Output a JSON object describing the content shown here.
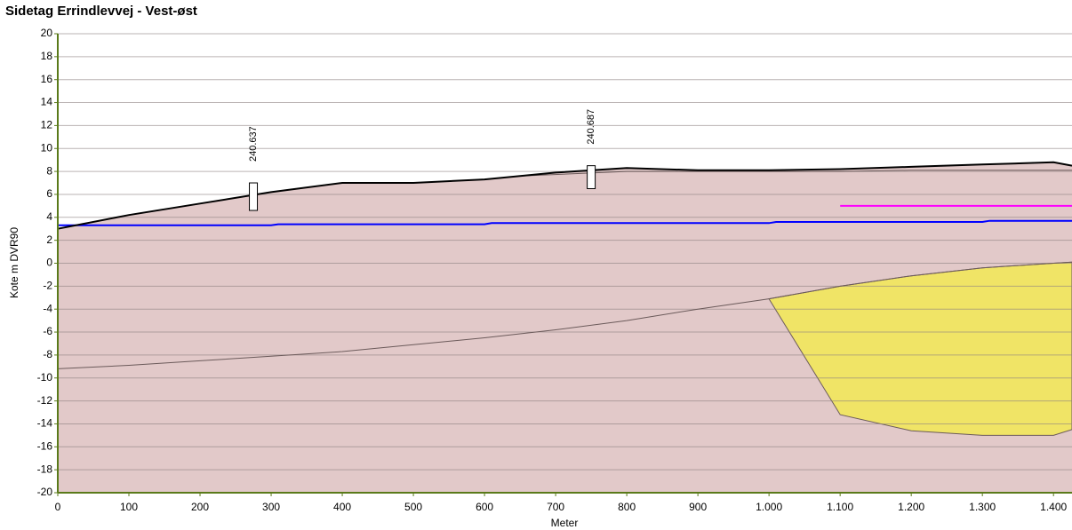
{
  "chart_data": {
    "type": "area",
    "title": "Sidetag Errindlevvej - Vest-øst",
    "xlabel": "Meter",
    "ylabel": "Kote m DVR90",
    "xlim": [
      0,
      1426
    ],
    "ylim": [
      -20,
      20
    ],
    "xticks": [
      0,
      100,
      200,
      300,
      400,
      500,
      600,
      700,
      800,
      900,
      {
        "value": 1000,
        "label": "1.000"
      },
      {
        "value": 1100,
        "label": "1.100"
      },
      {
        "value": 1200,
        "label": "1.200"
      },
      {
        "value": 1300,
        "label": "1.300"
      },
      {
        "value": 1400,
        "label": "1.400"
      }
    ],
    "yticks": [
      -20,
      -18,
      -16,
      -14,
      -12,
      -10,
      -8,
      -6,
      -4,
      -2,
      0,
      2,
      4,
      6,
      8,
      10,
      12,
      14,
      16,
      18,
      20
    ],
    "grid": true,
    "series": [
      {
        "style": "area",
        "color": "#000000",
        "fill": "#e2c9c9",
        "x": [
          0,
          100,
          200,
          300,
          400,
          500,
          600,
          700,
          800,
          900,
          1000,
          1100,
          1200,
          1300,
          1400,
          1426
        ],
        "values": [
          3,
          4.2,
          5.2,
          6.2,
          7,
          7,
          7.3,
          7.9,
          8.3,
          8.1,
          8.1,
          8.2,
          8.4,
          8.6,
          8.8,
          8.5
        ]
      },
      {
        "style": "polygon",
        "color": "#6b5a5a",
        "fill": "#f0e466",
        "x": [
          1000,
          1100,
          1200,
          1300,
          1400,
          1426,
          1426,
          1400,
          1300,
          1200,
          1100
        ],
        "values": [
          -3.1,
          -2.0,
          -1.1,
          -0.4,
          0,
          0.1,
          -14.5,
          -15,
          -15,
          -14.6,
          -13.2
        ]
      },
      {
        "style": "line",
        "color": "#6b5a5a",
        "x": [
          0,
          100,
          200,
          300,
          400,
          500,
          600,
          700,
          800,
          900,
          1000,
          1100,
          1200,
          1300,
          1400,
          1426
        ],
        "values": [
          -9.2,
          -8.9,
          -8.5,
          -8.1,
          -7.7,
          -7.1,
          -6.5,
          -5.8,
          -5.0,
          -4.0,
          -3.1,
          -2.0,
          -1.1,
          -0.4,
          0,
          0.1
        ]
      },
      {
        "style": "line",
        "color": "#6b5a5a",
        "x": [
          650,
          800,
          900,
          1000,
          1100,
          1200,
          1300,
          1426
        ],
        "values": [
          7.6,
          8.0,
          8.0,
          8.0,
          8.0,
          8.1,
          8.1,
          8.1
        ]
      },
      {
        "style": "line",
        "color": "#0000ff",
        "x": [
          0,
          300,
          310,
          600,
          610,
          1000,
          1010,
          1300,
          1310,
          1426
        ],
        "values": [
          3.3,
          3.3,
          3.4,
          3.4,
          3.5,
          3.5,
          3.6,
          3.6,
          3.7,
          3.7
        ]
      },
      {
        "style": "line",
        "color": "#ff00ff",
        "x": [
          1100,
          1426
        ],
        "values": [
          5,
          5
        ]
      }
    ],
    "boreholes": [
      {
        "label": "240.637",
        "x": 275,
        "top": 7,
        "bottom": 4.6
      },
      {
        "label": "240.687",
        "x": 750,
        "top": 8.5,
        "bottom": 6.5
      }
    ]
  }
}
